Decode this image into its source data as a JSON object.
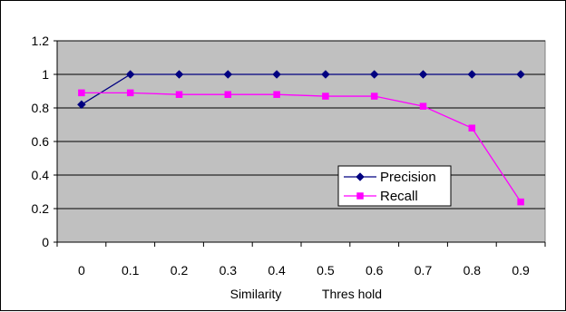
{
  "chart_data": {
    "type": "line",
    "categories": [
      "0",
      "0.1",
      "0.2",
      "0.3",
      "0.4",
      "0.5",
      "0.6",
      "0.7",
      "0.8",
      "0.9"
    ],
    "series": [
      {
        "name": "Precision",
        "color": "#000080",
        "marker": "diamond",
        "values": [
          0.82,
          1.0,
          1.0,
          1.0,
          1.0,
          1.0,
          1.0,
          1.0,
          1.0,
          1.0
        ]
      },
      {
        "name": "Recall",
        "color": "#ff00ff",
        "marker": "square",
        "values": [
          0.89,
          0.89,
          0.88,
          0.88,
          0.88,
          0.87,
          0.87,
          0.81,
          0.68,
          0.24
        ]
      }
    ],
    "xlabel_parts": [
      "Similarity",
      "Thres hold"
    ],
    "ylim": [
      0,
      1.2
    ],
    "yticks": [
      "0",
      "0.2",
      "0.4",
      "0.6",
      "0.8",
      "1",
      "1.2"
    ],
    "grid": true,
    "plot_background": "#c0c0c0",
    "legend_position": "lower-right"
  }
}
